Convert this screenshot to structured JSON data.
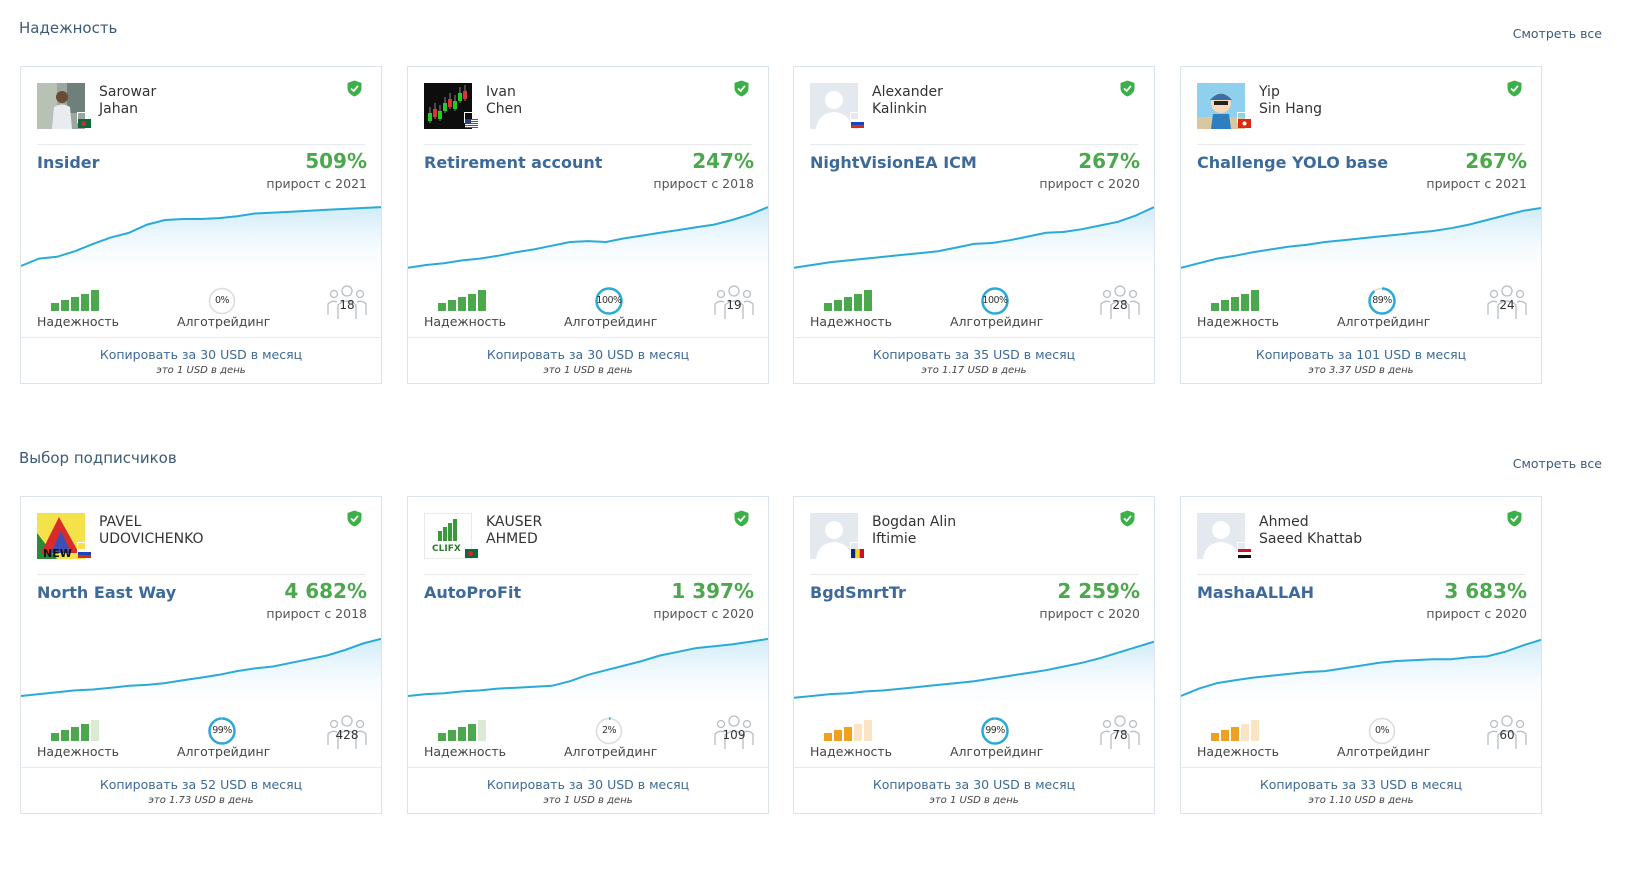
{
  "sections": [
    {
      "title": "Надежность",
      "see_all": "Смотреть все",
      "cards": [
        {
          "first": "Sarowar",
          "last": "Jahan",
          "flag": "bd",
          "avatar": "photo-person",
          "signal": "Insider",
          "growth": "509%",
          "since": "прирост с 2021",
          "reliability_label": "Надежность",
          "reliability_level": 5,
          "reliability_color": "green",
          "algo": "0%",
          "algo_fraction": 0.0,
          "algo_label": "Алготрейдинг",
          "subscribers": "18",
          "copy": "Копировать за 30 USD в месяц",
          "perday": "это 1 USD в день",
          "curve": [
            0.88,
            0.8,
            0.78,
            0.72,
            0.64,
            0.57,
            0.52,
            0.43,
            0.38,
            0.37,
            0.37,
            0.36,
            0.34,
            0.31,
            0.3,
            0.29,
            0.28,
            0.27,
            0.26,
            0.25,
            0.24
          ]
        },
        {
          "first": "Ivan",
          "last": "Chen",
          "flag": "us",
          "avatar": "trading-chart",
          "signal": "Retirement account",
          "growth": "247%",
          "since": "прирост с 2018",
          "reliability_label": "Надежность",
          "reliability_level": 5,
          "reliability_color": "green",
          "algo": "100%",
          "algo_fraction": 1.0,
          "algo_label": "Алготрейдинг",
          "subscribers": "19",
          "copy": "Копировать за 30 USD в месяц",
          "perday": "это 1 USD в день",
          "curve": [
            0.9,
            0.87,
            0.85,
            0.82,
            0.8,
            0.77,
            0.73,
            0.7,
            0.66,
            0.62,
            0.61,
            0.62,
            0.58,
            0.55,
            0.52,
            0.49,
            0.46,
            0.43,
            0.38,
            0.32,
            0.24
          ]
        },
        {
          "first": "Alexander",
          "last": "Kalinkin",
          "flag": "ru",
          "avatar": "default",
          "signal": "NightVisionEA ICM",
          "growth": "267%",
          "since": "прирост с 2020",
          "reliability_label": "Надежность",
          "reliability_level": 5,
          "reliability_color": "green",
          "algo": "100%",
          "algo_fraction": 1.0,
          "algo_label": "Алготрейдинг",
          "subscribers": "28",
          "copy": "Копировать за 35 USD в месяц",
          "perday": "это 1.17 USD в день",
          "curve": [
            0.9,
            0.87,
            0.84,
            0.82,
            0.8,
            0.78,
            0.76,
            0.74,
            0.72,
            0.68,
            0.64,
            0.63,
            0.6,
            0.56,
            0.52,
            0.51,
            0.48,
            0.44,
            0.4,
            0.33,
            0.24
          ]
        },
        {
          "first": "Yip",
          "last": "Sin Hang",
          "flag": "hk",
          "avatar": "cartoon",
          "signal": "Challenge YOLO base",
          "growth": "267%",
          "since": "прирост с 2021",
          "reliability_label": "Надежность",
          "reliability_level": 5,
          "reliability_color": "green",
          "algo": "89%",
          "algo_fraction": 0.89,
          "algo_label": "Алготрейдинг",
          "subscribers": "24",
          "copy": "Копировать за 101 USD в месяц",
          "perday": "это 3.37 USD в день",
          "curve": [
            0.9,
            0.85,
            0.8,
            0.77,
            0.73,
            0.7,
            0.67,
            0.65,
            0.62,
            0.6,
            0.58,
            0.56,
            0.54,
            0.52,
            0.5,
            0.47,
            0.43,
            0.38,
            0.33,
            0.28,
            0.25
          ]
        }
      ]
    },
    {
      "title": "Выбор подписчиков",
      "see_all": "Смотреть все",
      "cards": [
        {
          "first": "PAVEL",
          "last": "UDOVICHENKO",
          "flag": "ru",
          "avatar": "new-logo",
          "avatar_text": "NEW",
          "signal": "North East Way",
          "growth": "4 682%",
          "since": "прирост с 2018",
          "reliability_label": "Надежность",
          "reliability_level": 4,
          "reliability_color": "green",
          "algo": "99%",
          "algo_fraction": 0.99,
          "algo_label": "Алготрейдинг",
          "subscribers": "428",
          "copy": "Копировать за 52 USD в месяц",
          "perday": "это 1.73 USD в день",
          "curve": [
            0.88,
            0.86,
            0.84,
            0.82,
            0.81,
            0.79,
            0.77,
            0.76,
            0.74,
            0.71,
            0.68,
            0.65,
            0.61,
            0.58,
            0.56,
            0.52,
            0.48,
            0.44,
            0.38,
            0.31,
            0.26
          ]
        },
        {
          "first": "KAUSER",
          "last": "AHMED",
          "flag": "bd",
          "avatar": "clifx-logo",
          "avatar_text": "CLIFX",
          "signal": "AutoProFit",
          "growth": "1 397%",
          "since": "прирост с 2020",
          "reliability_label": "Надежность",
          "reliability_level": 4,
          "reliability_color": "green",
          "algo": "2%",
          "algo_fraction": 0.02,
          "algo_label": "Алготрейдинг",
          "subscribers": "109",
          "copy": "Копировать за 30 USD в месяц",
          "perday": "это 1 USD в день",
          "curve": [
            0.88,
            0.86,
            0.85,
            0.83,
            0.82,
            0.8,
            0.79,
            0.78,
            0.77,
            0.72,
            0.65,
            0.6,
            0.55,
            0.5,
            0.44,
            0.4,
            0.36,
            0.34,
            0.32,
            0.29,
            0.26
          ]
        },
        {
          "first": "Bogdan Alin",
          "last": "Iftimie",
          "flag": "ro",
          "avatar": "default",
          "signal": "BgdSmrtTr",
          "growth": "2 259%",
          "since": "прирост с 2020",
          "reliability_label": "Надежность",
          "reliability_level": 3,
          "reliability_color": "orange",
          "algo": "99%",
          "algo_fraction": 0.99,
          "algo_label": "Алготрейдинг",
          "subscribers": "78",
          "copy": "Копировать за 30 USD в месяц",
          "perday": "это 1 USD в день",
          "curve": [
            0.9,
            0.88,
            0.86,
            0.85,
            0.83,
            0.82,
            0.8,
            0.78,
            0.76,
            0.74,
            0.72,
            0.69,
            0.66,
            0.63,
            0.6,
            0.56,
            0.52,
            0.47,
            0.41,
            0.35,
            0.29
          ]
        },
        {
          "first": "Ahmed",
          "last": "Saeed Khattab",
          "flag": "eg",
          "avatar": "default",
          "signal": "MashaALLAH",
          "growth": "3 683%",
          "since": "прирост с 2020",
          "reliability_label": "Надежность",
          "reliability_level": 3,
          "reliability_color": "orange",
          "algo": "0%",
          "algo_fraction": 0.0,
          "algo_label": "Алготрейдинг",
          "subscribers": "60",
          "copy": "Копировать за 33 USD в месяц",
          "perday": "это 1.10 USD в день",
          "curve": [
            0.88,
            0.8,
            0.74,
            0.71,
            0.68,
            0.66,
            0.64,
            0.62,
            0.61,
            0.58,
            0.55,
            0.52,
            0.5,
            0.49,
            0.48,
            0.48,
            0.46,
            0.45,
            0.4,
            0.33,
            0.27
          ]
        }
      ]
    }
  ],
  "colors": {
    "accent": "#3d6a98",
    "growth": "#4ca84c",
    "curve": "#2aaad8",
    "verified": "#3cb048",
    "algo_ring": "#2aaad8",
    "green_bars": "#4ca84c",
    "orange_bars": "#f0a020"
  }
}
